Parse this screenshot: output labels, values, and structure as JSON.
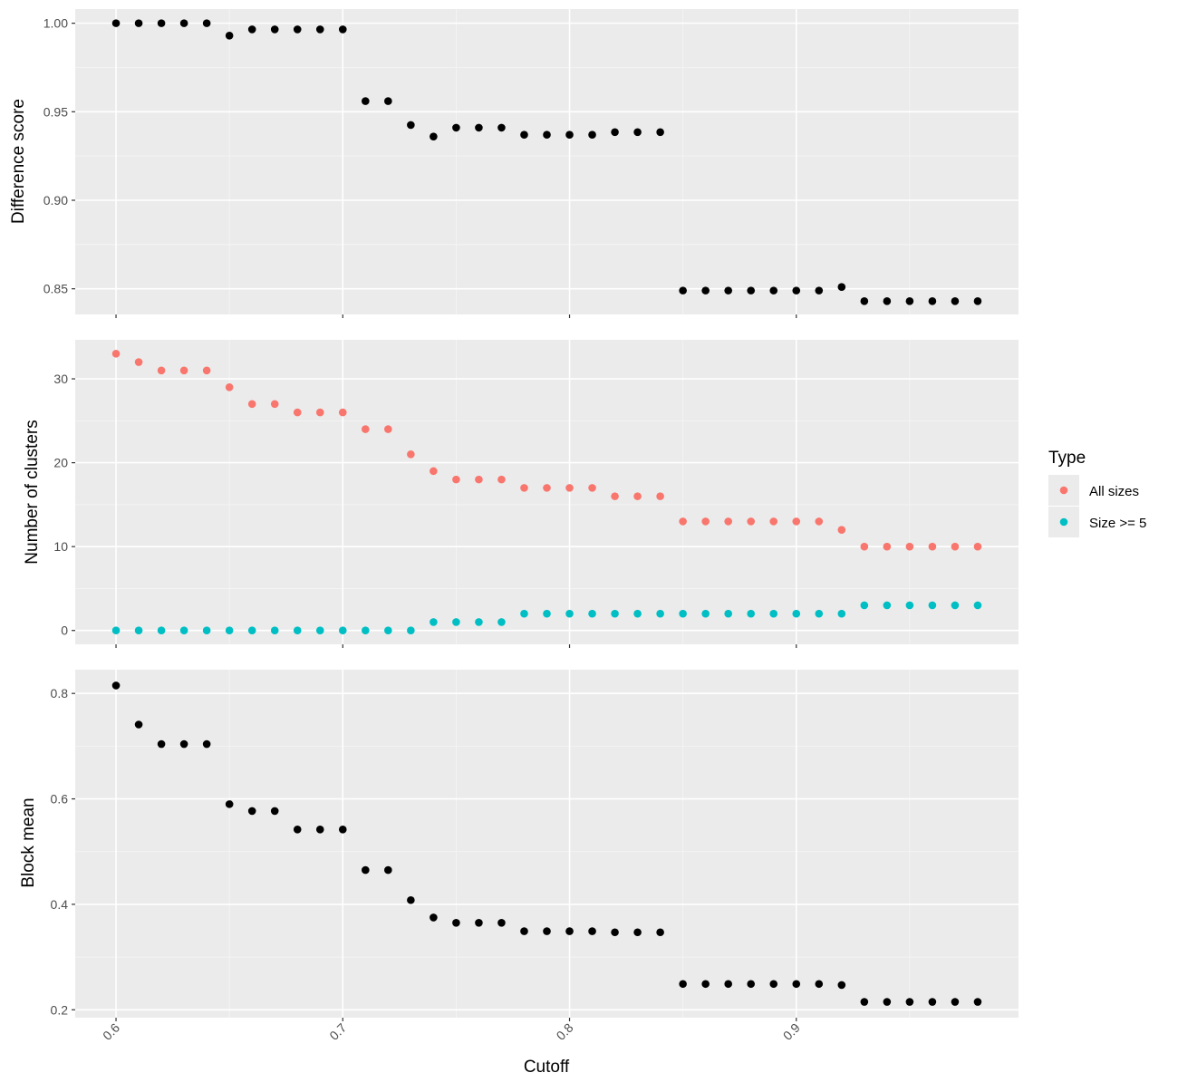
{
  "colors": {
    "panel_bg": "#ebebeb",
    "grid_major": "#ffffff",
    "grid_minor": "#f5f5f5",
    "tick_text": "#4d4d4d",
    "all_sizes": "#f8766d",
    "size_ge_5": "#00bfc4",
    "single_series": "#000000"
  },
  "chart_data": [
    {
      "type": "scatter",
      "panel": "top",
      "ylabel": "Difference score",
      "xlim": [
        0.582,
        0.998
      ],
      "ylim": [
        0.8355,
        1.008
      ],
      "y_ticks": [
        0.85,
        0.9,
        0.95,
        1.0
      ],
      "y_tick_labels": [
        "0.85",
        "0.90",
        "0.95",
        "1.00"
      ],
      "x": [
        0.6,
        0.61,
        0.62,
        0.63,
        0.64,
        0.65,
        0.66,
        0.67,
        0.68,
        0.69,
        0.7,
        0.71,
        0.72,
        0.73,
        0.74,
        0.75,
        0.76,
        0.77,
        0.78,
        0.79,
        0.8,
        0.81,
        0.82,
        0.83,
        0.84,
        0.85,
        0.86,
        0.87,
        0.88,
        0.89,
        0.9,
        0.91,
        0.92,
        0.93,
        0.94,
        0.95,
        0.96,
        0.97,
        0.98
      ],
      "series": [
        {
          "color": "#000000",
          "values": [
            1.0,
            1.0,
            1.0,
            1.0,
            1.0,
            0.993,
            0.9965,
            0.9965,
            0.9965,
            0.9965,
            0.9965,
            0.956,
            0.956,
            0.9425,
            0.936,
            0.941,
            0.941,
            0.941,
            0.937,
            0.937,
            0.937,
            0.937,
            0.9385,
            0.9385,
            0.9385,
            0.849,
            0.849,
            0.849,
            0.849,
            0.849,
            0.849,
            0.849,
            0.851,
            0.843,
            0.843,
            0.843,
            0.843,
            0.843,
            0.843
          ]
        }
      ]
    },
    {
      "type": "scatter",
      "panel": "middle",
      "ylabel": "Number of clusters",
      "xlim": [
        0.582,
        0.998
      ],
      "ylim": [
        -1.65,
        34.65
      ],
      "y_ticks": [
        0,
        10,
        20,
        30
      ],
      "y_tick_labels": [
        "0",
        "10",
        "20",
        "30"
      ],
      "x": [
        0.6,
        0.61,
        0.62,
        0.63,
        0.64,
        0.65,
        0.66,
        0.67,
        0.68,
        0.69,
        0.7,
        0.71,
        0.72,
        0.73,
        0.74,
        0.75,
        0.76,
        0.77,
        0.78,
        0.79,
        0.8,
        0.81,
        0.82,
        0.83,
        0.84,
        0.85,
        0.86,
        0.87,
        0.88,
        0.89,
        0.9,
        0.91,
        0.92,
        0.93,
        0.94,
        0.95,
        0.96,
        0.97,
        0.98
      ],
      "legend": {
        "title": "Type",
        "position": "right",
        "entries": [
          "All sizes",
          "Size >= 5"
        ]
      },
      "series": [
        {
          "name": "All sizes",
          "color": "#f8766d",
          "values": [
            33,
            32,
            31,
            31,
            31,
            29,
            27,
            27,
            26,
            26,
            26,
            24,
            24,
            21,
            19,
            18,
            18,
            18,
            17,
            17,
            17,
            17,
            16,
            16,
            16,
            13,
            13,
            13,
            13,
            13,
            13,
            13,
            12,
            10,
            10,
            10,
            10,
            10,
            10
          ]
        },
        {
          "name": "Size >= 5",
          "color": "#00bfc4",
          "values": [
            0,
            0,
            0,
            0,
            0,
            0,
            0,
            0,
            0,
            0,
            0,
            0,
            0,
            0,
            1,
            1,
            1,
            1,
            2,
            2,
            2,
            2,
            2,
            2,
            2,
            2,
            2,
            2,
            2,
            2,
            2,
            2,
            2,
            3,
            3,
            3,
            3,
            3,
            3
          ]
        }
      ]
    },
    {
      "type": "scatter",
      "panel": "bottom",
      "ylabel": "Block mean",
      "xlabel": "Cutoff",
      "xlim": [
        0.582,
        0.998
      ],
      "ylim": [
        0.185,
        0.845
      ],
      "y_ticks": [
        0.2,
        0.4,
        0.6,
        0.8
      ],
      "y_tick_labels": [
        "0.2",
        "0.4",
        "0.6",
        "0.8"
      ],
      "x_ticks": [
        0.6,
        0.7,
        0.8,
        0.9
      ],
      "x_tick_labels": [
        "0.6",
        "0.7",
        "0.8",
        "0.9"
      ],
      "x": [
        0.6,
        0.61,
        0.62,
        0.63,
        0.64,
        0.65,
        0.66,
        0.67,
        0.68,
        0.69,
        0.7,
        0.71,
        0.72,
        0.73,
        0.74,
        0.75,
        0.76,
        0.77,
        0.78,
        0.79,
        0.8,
        0.81,
        0.82,
        0.83,
        0.84,
        0.85,
        0.86,
        0.87,
        0.88,
        0.89,
        0.9,
        0.91,
        0.92,
        0.93,
        0.94,
        0.95,
        0.96,
        0.97,
        0.98
      ],
      "series": [
        {
          "color": "#000000",
          "values": [
            0.815,
            0.741,
            0.704,
            0.704,
            0.704,
            0.59,
            0.577,
            0.577,
            0.542,
            0.542,
            0.542,
            0.465,
            0.465,
            0.408,
            0.375,
            0.365,
            0.365,
            0.365,
            0.349,
            0.349,
            0.349,
            0.349,
            0.347,
            0.347,
            0.347,
            0.249,
            0.249,
            0.249,
            0.249,
            0.249,
            0.249,
            0.249,
            0.247,
            0.215,
            0.215,
            0.215,
            0.215,
            0.215,
            0.215
          ]
        }
      ]
    }
  ]
}
